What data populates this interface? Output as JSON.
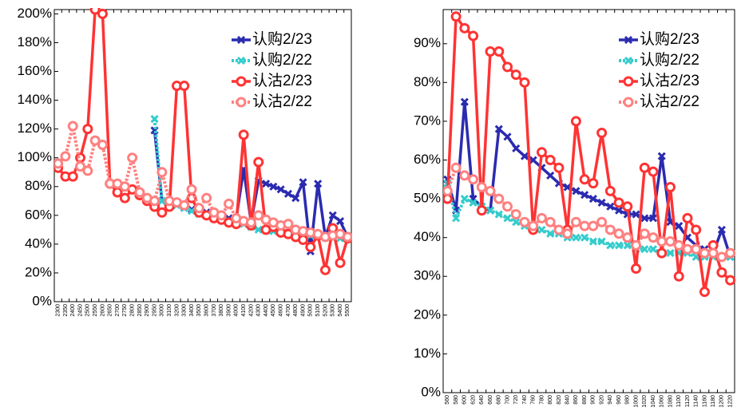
{
  "chart_data": [
    {
      "type": "line",
      "legend": "upper right",
      "categories": [
        "2300",
        "2350",
        "2400",
        "2450",
        "2500",
        "2550",
        "2600",
        "2650",
        "2700",
        "2750",
        "2800",
        "2850",
        "2900",
        "2950",
        "3000",
        "3100",
        "3200",
        "3300",
        "3400",
        "3500",
        "3600",
        "3700",
        "3800",
        "3900",
        "4000",
        "4100",
        "4200",
        "4300",
        "4400",
        "4500",
        "4600",
        "4700",
        "4800",
        "4900",
        "5000",
        "5100",
        "5200",
        "5300",
        "5400",
        "5500"
      ],
      "ylim": [
        0,
        203
      ],
      "yticks": [
        {
          "value": 0,
          "label": "0%"
        },
        {
          "value": 20,
          "label": "20%"
        },
        {
          "value": 40,
          "label": "40%"
        },
        {
          "value": 60,
          "label": "60%"
        },
        {
          "value": 80,
          "label": "80%"
        },
        {
          "value": 100,
          "label": "100%"
        },
        {
          "value": 120,
          "label": "120%"
        },
        {
          "value": 140,
          "label": "140%"
        },
        {
          "value": 160,
          "label": "160%"
        },
        {
          "value": 180,
          "label": "180%"
        },
        {
          "value": 200,
          "label": "200%"
        }
      ],
      "series": [
        {
          "name": "认购2/23",
          "color": "#2b2bb0",
          "marker": "x",
          "line_style": "solid",
          "values": [
            null,
            null,
            null,
            null,
            null,
            null,
            null,
            null,
            null,
            null,
            null,
            null,
            null,
            119,
            70,
            70,
            68,
            66,
            64,
            62,
            62,
            60,
            60,
            58,
            58,
            92,
            55,
            84,
            82,
            80,
            78,
            75,
            72,
            83,
            35,
            82,
            45,
            60,
            56,
            45
          ]
        },
        {
          "name": "认购2/22",
          "color": "#33cccc",
          "marker": "x",
          "line_style": "dotted",
          "values": [
            null,
            null,
            null,
            null,
            null,
            null,
            null,
            null,
            null,
            null,
            null,
            null,
            null,
            127,
            70,
            69,
            67,
            65,
            63,
            61,
            60,
            58,
            57,
            56,
            55,
            54,
            52,
            50,
            50,
            49,
            48,
            48,
            47,
            47,
            46,
            46,
            45,
            45,
            44,
            44
          ]
        },
        {
          "name": "认沽2/23",
          "color": "#ff3333",
          "marker": "o",
          "line_style": "solid",
          "values": [
            93,
            87,
            87,
            100,
            120,
            203,
            200,
            82,
            76,
            72,
            78,
            74,
            70,
            66,
            62,
            66,
            150,
            150,
            72,
            62,
            60,
            58,
            57,
            55,
            54,
            116,
            53,
            97,
            50,
            52,
            48,
            47,
            45,
            43,
            38,
            46,
            22,
            51,
            27,
            44
          ]
        },
        {
          "name": "认沽2/22",
          "color": "#ff8080",
          "marker": "o",
          "line_style": "dotted",
          "values": [
            96,
            101,
            122,
            94,
            91,
            112,
            109,
            82,
            82,
            80,
            100,
            76,
            72,
            70,
            90,
            70,
            69,
            67,
            78,
            65,
            72,
            62,
            60,
            68,
            58,
            56,
            55,
            60,
            57,
            55,
            53,
            54,
            50,
            49,
            48,
            47,
            45,
            46,
            47,
            45
          ]
        }
      ]
    },
    {
      "type": "line",
      "legend": "upper right",
      "categories": [
        "560",
        "580",
        "600",
        "620",
        "640",
        "660",
        "680",
        "700",
        "720",
        "740",
        "760",
        "780",
        "800",
        "820",
        "840",
        "860",
        "880",
        "900",
        "920",
        "940",
        "960",
        "980",
        "1000",
        "1020",
        "1040",
        "1060",
        "1080",
        "1100",
        "1120",
        "1140",
        "1160",
        "1180",
        "1200",
        "1220"
      ],
      "ylim": [
        0,
        98.8
      ],
      "yticks": [
        {
          "value": 0,
          "label": "0%"
        },
        {
          "value": 10,
          "label": "10%"
        },
        {
          "value": 20,
          "label": "20%"
        },
        {
          "value": 30,
          "label": "30%"
        },
        {
          "value": 40,
          "label": "40%"
        },
        {
          "value": 50,
          "label": "50%"
        },
        {
          "value": 60,
          "label": "60%"
        },
        {
          "value": 70,
          "label": "70%"
        },
        {
          "value": 80,
          "label": "80%"
        },
        {
          "value": 90,
          "label": "90%"
        }
      ],
      "series": [
        {
          "name": "认购2/23",
          "color": "#2b2bb0",
          "marker": "x",
          "line_style": "solid",
          "values": [
            55,
            47,
            75,
            50,
            48,
            47,
            68,
            66,
            63,
            61,
            60,
            58,
            56,
            54,
            53,
            52,
            51,
            50,
            49,
            48,
            47,
            46,
            46,
            45,
            45,
            61,
            44,
            43,
            40,
            38,
            37,
            36,
            42,
            35
          ]
        },
        {
          "name": "认购2/22",
          "color": "#33cccc",
          "marker": "x",
          "line_style": "dotted",
          "values": [
            54,
            45,
            50,
            49,
            48,
            47,
            46,
            45,
            44,
            43,
            42,
            42,
            41,
            41,
            40,
            40,
            40,
            39,
            39,
            38,
            38,
            38,
            37,
            37,
            37,
            36,
            36,
            36,
            36,
            35,
            35,
            35,
            35,
            35
          ]
        },
        {
          "name": "认沽2/23",
          "color": "#ff3333",
          "marker": "o",
          "line_style": "solid",
          "values": [
            50,
            97,
            94,
            92,
            47,
            88,
            88,
            84,
            82,
            80,
            42,
            62,
            60,
            58,
            42,
            70,
            55,
            54,
            67,
            52,
            49,
            48,
            32,
            58,
            57,
            36,
            53,
            30,
            45,
            42,
            26,
            38,
            31,
            29
          ]
        },
        {
          "name": "认沽2/22",
          "color": "#ff8080",
          "marker": "o",
          "line_style": "dotted",
          "values": [
            52,
            58,
            56,
            55,
            53,
            52,
            50,
            48,
            46,
            44,
            43,
            45,
            44,
            42,
            41,
            44,
            43,
            43,
            44,
            42,
            41,
            40,
            38,
            41,
            40,
            39,
            39,
            38,
            37,
            37,
            36,
            36,
            35,
            36
          ]
        }
      ]
    }
  ]
}
